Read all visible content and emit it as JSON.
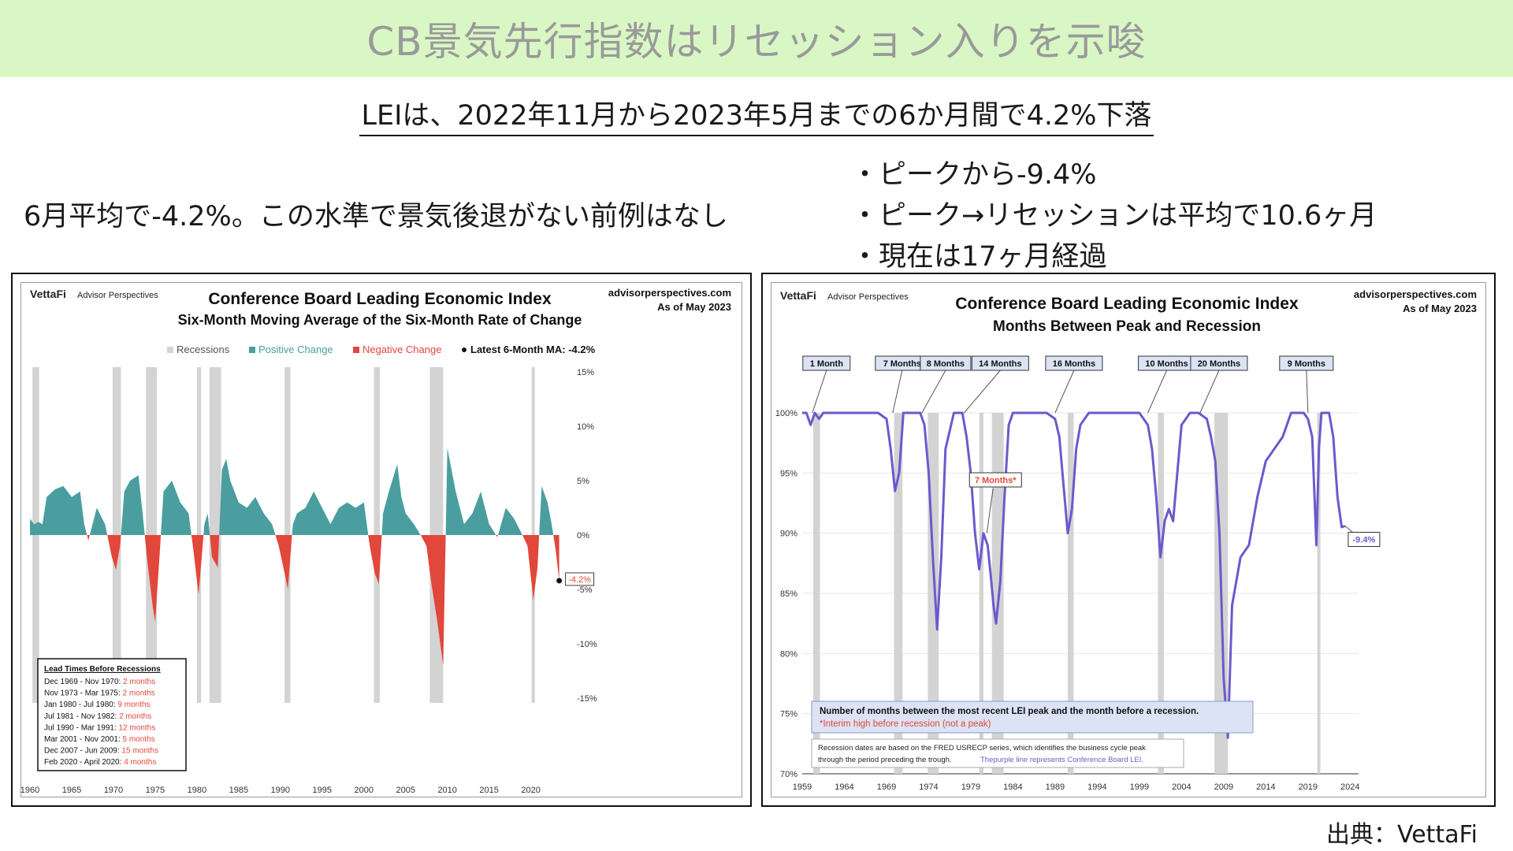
{
  "slide": {
    "title": "CB景気先行指数はリセッション入りを示唆",
    "subtitle": "LEIは、2022年11月から2023年5月までの6か月間で4.2%下落",
    "left_note": "6月平均で-4.2%。この水準で景気後退がない前例はなし",
    "bullets": [
      "・ピークから-9.4%",
      "・ピーク→リセッションは平均で10.6ヶ月",
      "・現在は17ヶ月経過"
    ],
    "source": "出典：VettaFi"
  },
  "colors": {
    "banner_bg": "#d9f7c4",
    "positive": "#4a9ea0",
    "negative": "#e2473b",
    "recession": "#d3d3d3",
    "lei_line": "#6a5acd"
  },
  "chart_data": [
    {
      "type": "area",
      "brand": "VettaFi",
      "brand_sub": "Advisor Perspectives",
      "site": "advisorperspectives.com",
      "as_of": "As of May 2023",
      "title": "Conference Board Leading Economic Index",
      "subtitle": "Six-Month Moving Average of the Six-Month Rate of Change",
      "legend": [
        "Recessions",
        "Positive Change",
        "Negative Change",
        "Latest 6-Month MA: -4.2%"
      ],
      "legend_position": "top",
      "x_ticks": [
        "1960",
        "1965",
        "1970",
        "1975",
        "1980",
        "1985",
        "1990",
        "1995",
        "2000",
        "2005",
        "2010",
        "2015",
        "2020"
      ],
      "xlim": [
        1960,
        2024
      ],
      "ylim": [
        -15,
        15
      ],
      "y_ticks": [
        -15,
        -10,
        -5,
        0,
        5,
        10,
        15
      ],
      "y_tick_labels": [
        "-15%",
        "-10%",
        "-5%",
        "0%",
        "5%",
        "10%",
        "15%"
      ],
      "recessions": [
        [
          1960.3,
          1961.1
        ],
        [
          1969.9,
          1970.9
        ],
        [
          1973.9,
          1975.2
        ],
        [
          1980.0,
          1980.5
        ],
        [
          1981.5,
          1982.9
        ],
        [
          1990.5,
          1991.2
        ],
        [
          2001.2,
          2001.9
        ],
        [
          2007.9,
          2009.5
        ],
        [
          2020.1,
          2020.3
        ]
      ],
      "x": [
        1960,
        1960.5,
        1961,
        1961.5,
        1962,
        1963,
        1964,
        1965,
        1966,
        1966.5,
        1967,
        1968,
        1969,
        1969.8,
        1970.3,
        1970.8,
        1971.3,
        1972,
        1973,
        1973.5,
        1974,
        1974.7,
        1975,
        1975.6,
        1976,
        1977,
        1978,
        1979,
        1979.6,
        1980.2,
        1980.9,
        1981.3,
        1981.8,
        1982.5,
        1983,
        1983.5,
        1984,
        1985,
        1986,
        1987,
        1988,
        1989,
        1989.8,
        1990.5,
        1990.9,
        1991.5,
        1992,
        1993,
        1994,
        1995,
        1996,
        1997,
        1998,
        1999,
        2000,
        2000.7,
        2001.3,
        2001.8,
        2002.3,
        2003,
        2004,
        2004.5,
        2005,
        2006,
        2006.8,
        2007.5,
        2008,
        2008.8,
        2009.5,
        2010,
        2011,
        2012,
        2013,
        2014,
        2015,
        2016,
        2017,
        2018,
        2019,
        2019.6,
        2020.3,
        2020.8,
        2021.3,
        2022,
        2022.5,
        2023,
        2023.4
      ],
      "y": [
        1.5,
        1,
        1.2,
        1,
        3.5,
        4.2,
        4.5,
        3.5,
        4,
        1,
        -0.5,
        2.5,
        1,
        -2,
        -3.2,
        -1,
        4,
        5,
        5.5,
        2,
        -2,
        -6.5,
        -8,
        -1,
        4,
        5,
        3,
        2,
        -1.5,
        -5.5,
        1,
        2,
        -2,
        -3,
        6,
        7,
        5,
        3,
        2.5,
        3.5,
        2,
        1,
        -1,
        -3.5,
        -5,
        1,
        2,
        2.5,
        4,
        2.5,
        1,
        2.5,
        3,
        2.5,
        3,
        -1,
        -3.5,
        -4.5,
        2,
        4,
        6.5,
        3.5,
        2,
        1,
        0,
        -1,
        -4,
        -8,
        -12,
        8,
        4,
        1,
        2,
        4,
        1,
        -0.2,
        2.5,
        1.5,
        0,
        -1,
        -6,
        -3,
        4.5,
        3,
        1,
        -1.5,
        -4.2
      ],
      "latest_label": "-4.2%",
      "lead_times": {
        "title": "Lead Times Before Recessions",
        "rows": [
          {
            "period": "Dec 1969 - Nov 1970:",
            "lead": "2 months"
          },
          {
            "period": "Nov 1973 - Mar 1975:",
            "lead": "2 months"
          },
          {
            "period": "Jan 1980 - Jul 1980:",
            "lead": "9 months"
          },
          {
            "period": "Jul 1981 - Nov 1982:",
            "lead": "2 months"
          },
          {
            "period": "Jul 1990 - Mar 1991:",
            "lead": "12 months"
          },
          {
            "period": "Mar 2001 - Nov 2001:",
            "lead": "5 months"
          },
          {
            "period": "Dec 2007 - Jun 2009:",
            "lead": "15 months"
          },
          {
            "period": "Feb 2020 - April 2020:",
            "lead": "4 months"
          }
        ]
      }
    },
    {
      "type": "line",
      "brand": "VettaFi",
      "brand_sub": "Advisor Perspectives",
      "site": "advisorperspectives.com",
      "as_of": "As of May 2023",
      "title": "Conference Board Leading Economic Index",
      "subtitle": "Months Between Peak and Recession",
      "x_ticks": [
        "1959",
        "1964",
        "1969",
        "1974",
        "1979",
        "1984",
        "1989",
        "1994",
        "1999",
        "2004",
        "2009",
        "2014",
        "2019",
        "2024"
      ],
      "xlim": [
        1959,
        2025
      ],
      "ylim": [
        70,
        100
      ],
      "y_ticks": [
        70,
        75,
        80,
        85,
        90,
        95,
        100
      ],
      "y_tick_labels": [
        "70%",
        "75%",
        "80%",
        "85%",
        "90%",
        "95%",
        "100%"
      ],
      "recessions": [
        [
          1960.3,
          1961.1
        ],
        [
          1969.9,
          1970.9
        ],
        [
          1973.9,
          1975.2
        ],
        [
          1980.0,
          1980.5
        ],
        [
          1981.5,
          1982.9
        ],
        [
          1990.5,
          1991.2
        ],
        [
          2001.2,
          2001.9
        ],
        [
          2007.9,
          2009.5
        ],
        [
          2020.1,
          2020.3
        ]
      ],
      "series": [
        {
          "x": [
            1959,
            1959.5,
            1960,
            1960.5,
            1961,
            1961.5,
            1962,
            1964,
            1966,
            1967,
            1968,
            1969,
            1969.5,
            1970,
            1970.5,
            1971,
            1971.5,
            1972,
            1973,
            1973.5,
            1974,
            1974.5,
            1975,
            1975.5,
            1976,
            1977,
            1978,
            1978.5,
            1979,
            1979.5,
            1980,
            1980.5,
            1981,
            1981.3,
            1981.7,
            1982,
            1982.5,
            1983,
            1983.5,
            1984,
            1985,
            1986,
            1987,
            1988,
            1989,
            1989.5,
            1990,
            1990.5,
            1991,
            1991.5,
            1992,
            1993,
            1994,
            1995,
            1996,
            1997,
            1998,
            1999,
            2000,
            2000.5,
            2001,
            2001.5,
            2002,
            2002.5,
            2003,
            2003.5,
            2004,
            2005,
            2006,
            2007,
            2007.5,
            2008,
            2008.5,
            2009,
            2009.5,
            2010,
            2011,
            2012,
            2013,
            2014,
            2015,
            2016,
            2017,
            2018,
            2018.5,
            2019,
            2019.5,
            2020,
            2020.3,
            2020.6,
            2021,
            2021.5,
            2022,
            2022.5,
            2023,
            2023.4
          ],
          "y": [
            100,
            100,
            99,
            100,
            99.5,
            100,
            100,
            100,
            100,
            100,
            100,
            99.5,
            97,
            93.5,
            95,
            100,
            100,
            100,
            100,
            99,
            95,
            88,
            82,
            88,
            97,
            100,
            100,
            98,
            95,
            90,
            87,
            90,
            89,
            87,
            84,
            82.5,
            86,
            93,
            99,
            100,
            100,
            100,
            100,
            100,
            99.5,
            98,
            94,
            90,
            92,
            97,
            99,
            100,
            100,
            100,
            100,
            100,
            100,
            100,
            99,
            97,
            93,
            88,
            91,
            92,
            91,
            95,
            99,
            100,
            100,
            99.5,
            98,
            96,
            90,
            78,
            73,
            84,
            88,
            89,
            93,
            96,
            97,
            98,
            100,
            100,
            100,
            99.5,
            98,
            89,
            97,
            100,
            100,
            100,
            98,
            93,
            90.5,
            90.6
          ]
        }
      ],
      "labels": [
        "1 Month",
        "7 Months",
        "8 Months",
        "14 Months",
        "16 Months",
        "10 Months",
        "20 Months",
        "9 Months"
      ],
      "interim_label": "7 Months*",
      "latest_label": "-9.4%",
      "note_main": "Number of months between the most recent LEI peak and the month before a recession.",
      "note_interim": "*Interim high before recession (not a peak)",
      "note_small_1": "Recession dates are based on the FRED USRECP series, which identifies the business cycle peak",
      "note_small_2a": "through the period preceding the trough.",
      "note_small_2b": "Thepurple line represents Conference Board LEI."
    }
  ]
}
